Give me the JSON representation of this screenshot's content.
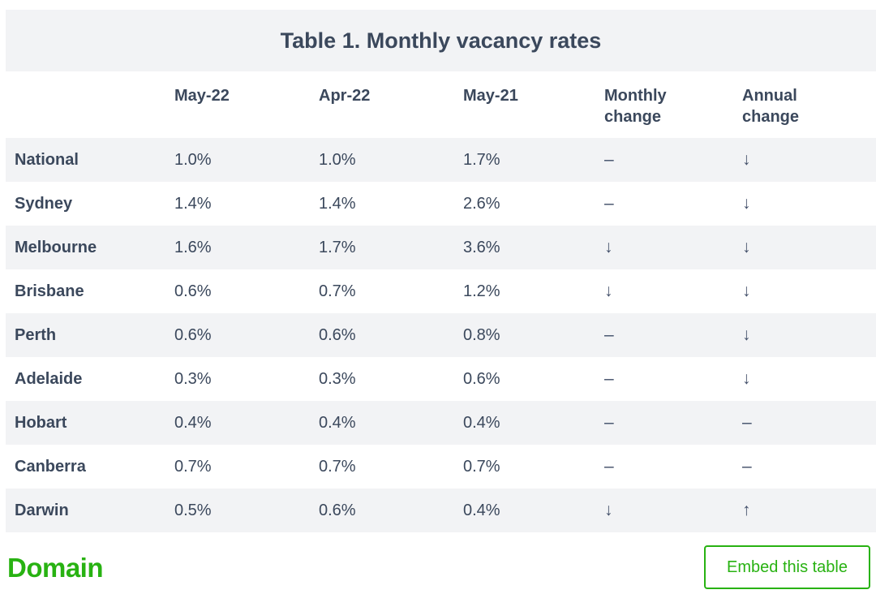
{
  "chart_data": {
    "type": "table",
    "title": "Table 1. Monthly vacancy rates",
    "columns": [
      "",
      "May-22",
      "Apr-22",
      "May-21",
      "Monthly change",
      "Annual change"
    ],
    "rows": [
      {
        "region": "National",
        "may_22": "1.0%",
        "apr_22": "1.0%",
        "may_21": "1.7%",
        "monthly_change": "steady",
        "annual_change": "down"
      },
      {
        "region": "Sydney",
        "may_22": "1.4%",
        "apr_22": "1.4%",
        "may_21": "2.6%",
        "monthly_change": "steady",
        "annual_change": "down"
      },
      {
        "region": "Melbourne",
        "may_22": "1.6%",
        "apr_22": "1.7%",
        "may_21": "3.6%",
        "monthly_change": "down",
        "annual_change": "down"
      },
      {
        "region": "Brisbane",
        "may_22": "0.6%",
        "apr_22": "0.7%",
        "may_21": "1.2%",
        "monthly_change": "down",
        "annual_change": "down"
      },
      {
        "region": "Perth",
        "may_22": "0.6%",
        "apr_22": "0.6%",
        "may_21": "0.8%",
        "monthly_change": "steady",
        "annual_change": "down"
      },
      {
        "region": "Adelaide",
        "may_22": "0.3%",
        "apr_22": "0.3%",
        "may_21": "0.6%",
        "monthly_change": "steady",
        "annual_change": "down"
      },
      {
        "region": "Hobart",
        "may_22": "0.4%",
        "apr_22": "0.4%",
        "may_21": "0.4%",
        "monthly_change": "steady",
        "annual_change": "steady"
      },
      {
        "region": "Canberra",
        "may_22": "0.7%",
        "apr_22": "0.7%",
        "may_21": "0.7%",
        "monthly_change": "steady",
        "annual_change": "steady"
      },
      {
        "region": "Darwin",
        "may_22": "0.5%",
        "apr_22": "0.6%",
        "may_21": "0.4%",
        "monthly_change": "down",
        "annual_change": "up"
      }
    ]
  },
  "table_render": {
    "header_labels": [
      "",
      "May-22",
      "Apr-22",
      "May-21",
      "Monthly\nchange",
      "Annual\nchange"
    ],
    "change_glyphs": {
      "steady": "–",
      "down": "↓",
      "up": "↑"
    }
  },
  "footer": {
    "logo_text": "Domain",
    "embed_button_label": "Embed this table"
  },
  "colors": {
    "brand_green": "#28b212",
    "text_dark": "#3b485c",
    "band_bg": "#f2f3f5"
  }
}
